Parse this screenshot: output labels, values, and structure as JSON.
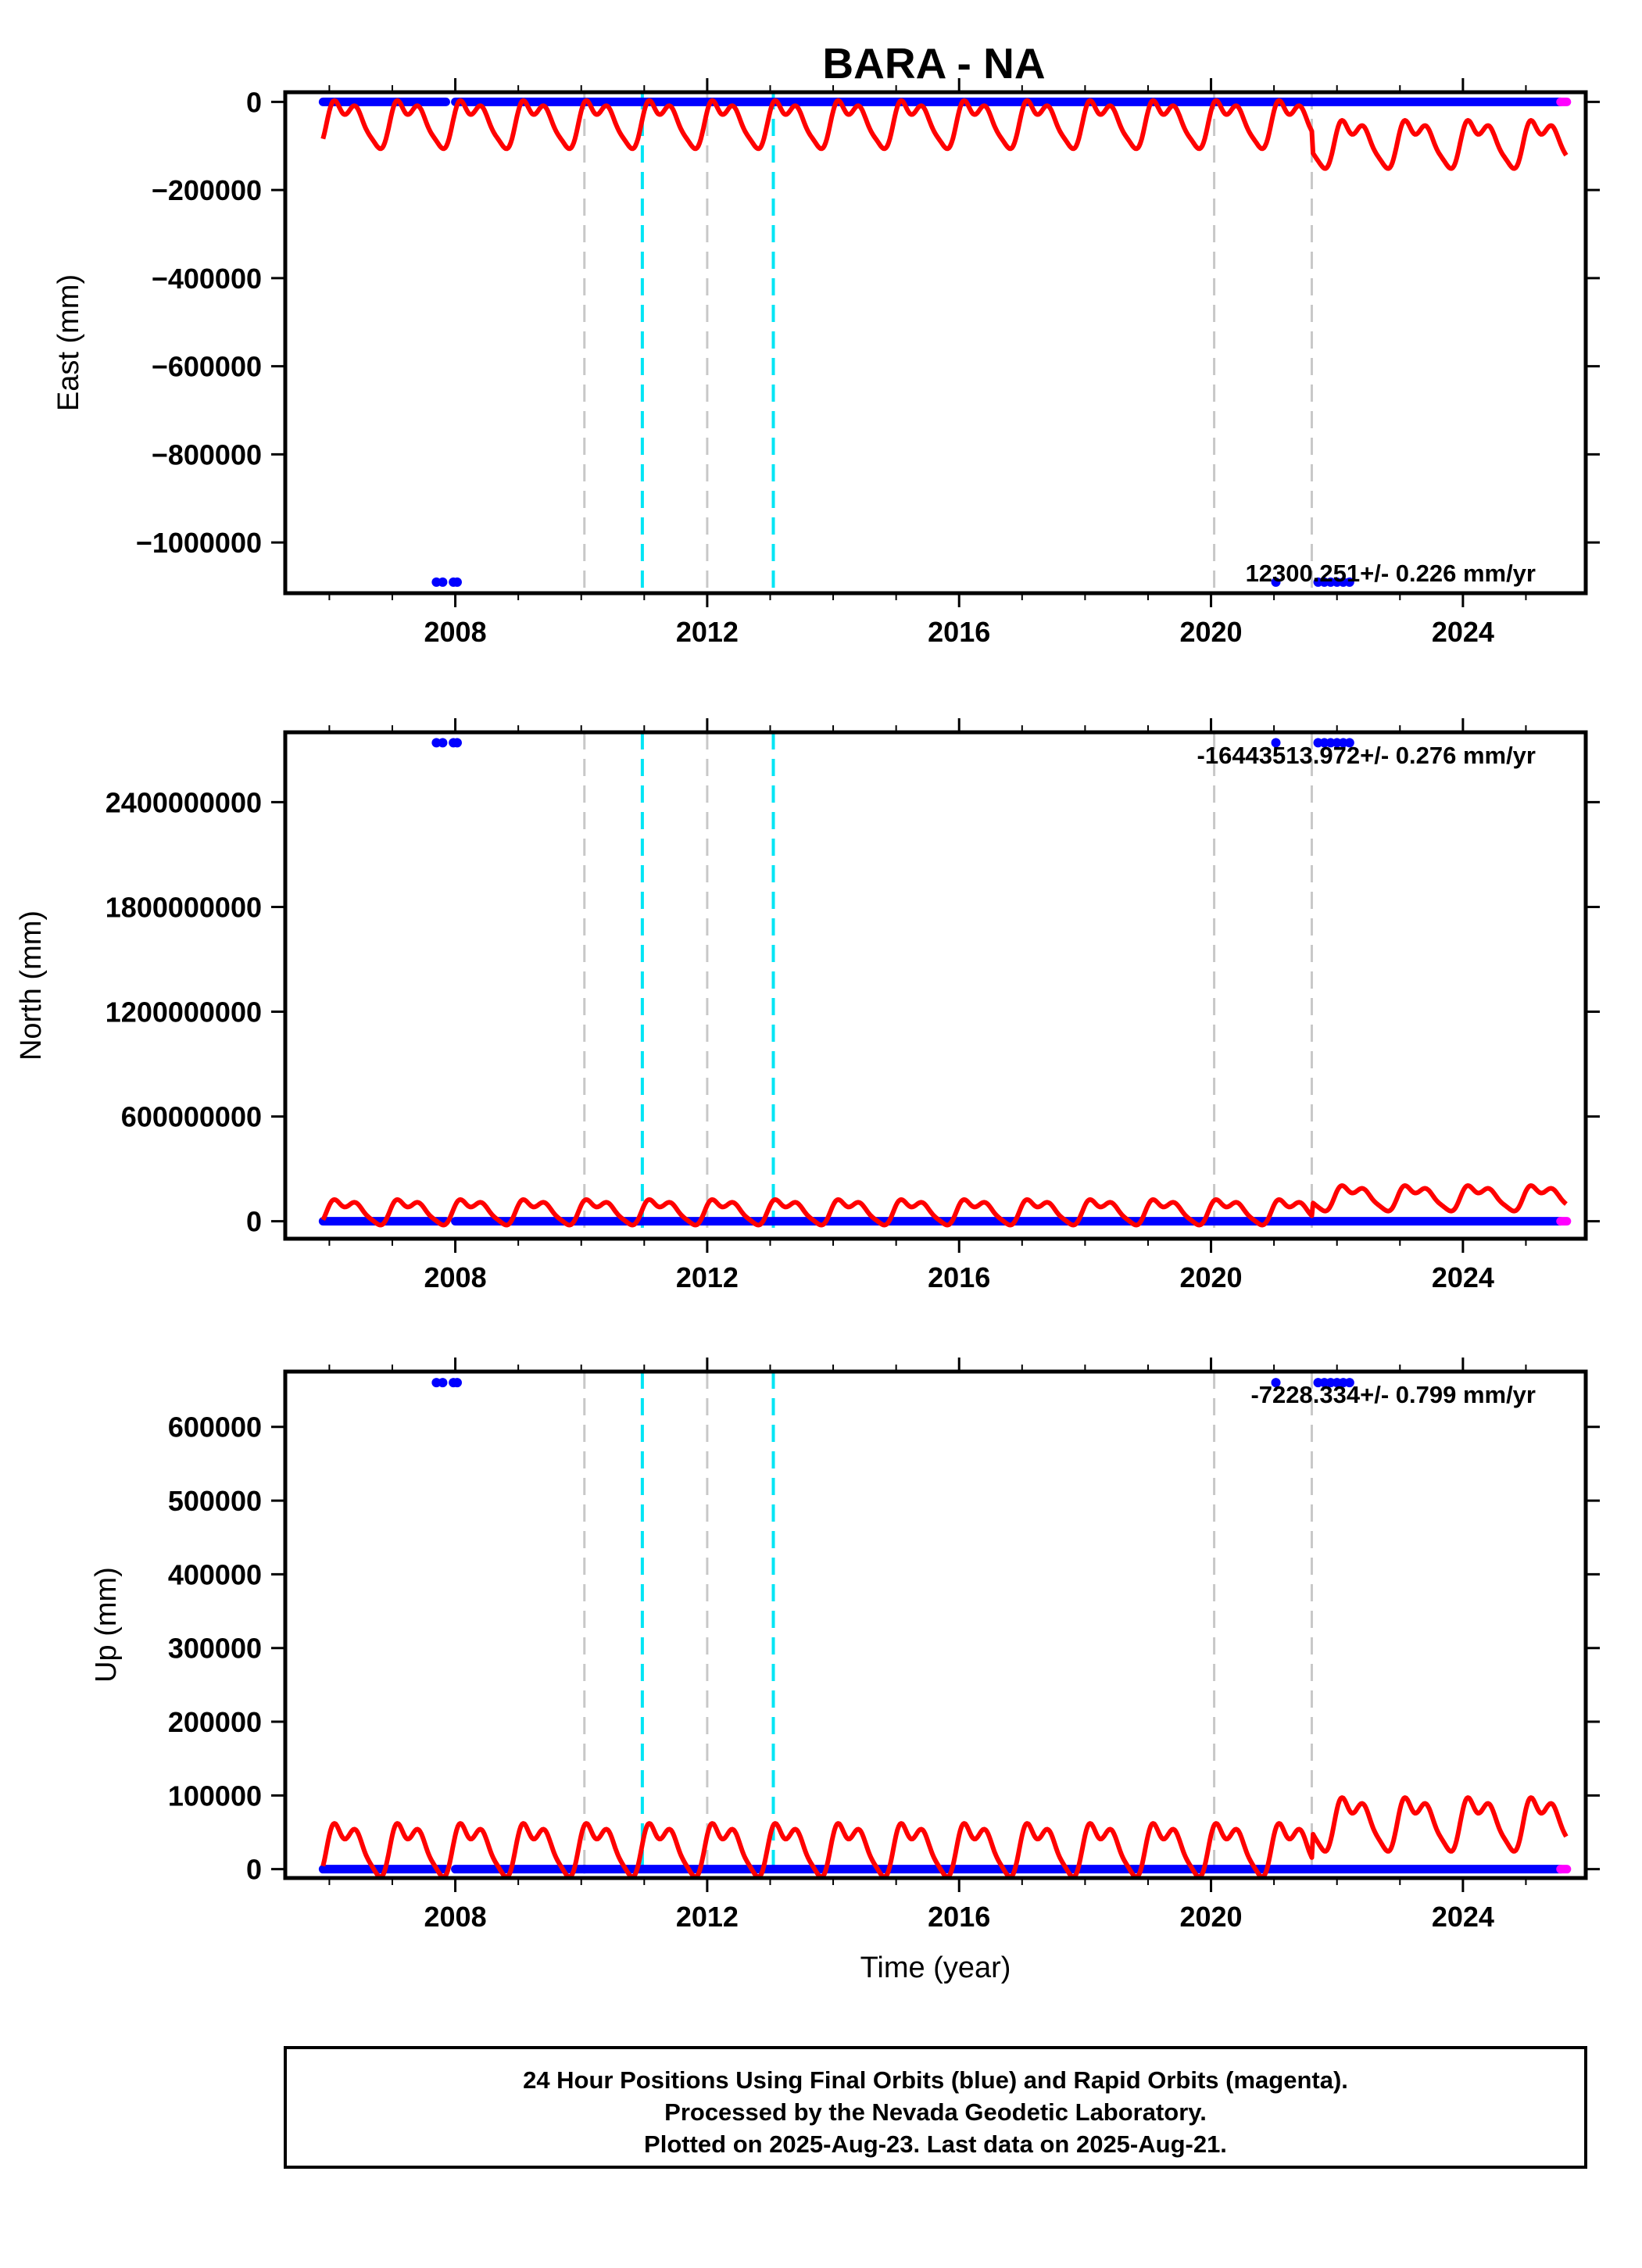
{
  "title": "BARA - NA",
  "footer": {
    "lines": [
      "24 Hour Positions Using Final Orbits (blue) and Rapid Orbits (magenta).",
      "Processed by the Nevada Geodetic Laboratory.",
      "Plotted on 2025-Aug-23. Last data on 2025-Aug-21."
    ]
  },
  "colors": {
    "final_orbits": "#0000ff",
    "rapid_orbits": "#ff00ff",
    "model": "#ff0000",
    "equipment_change": "#c8c8c8",
    "earthquake": "#00e5f5"
  },
  "chart_data": [
    {
      "type": "scatter",
      "panel": "east",
      "ylabel": "East (mm)",
      "xlabel": "",
      "xlim": [
        2005.3,
        2025.95
      ],
      "ylim": [
        -1115000,
        22000
      ],
      "xticks": [
        2008,
        2012,
        2016,
        2020,
        2024
      ],
      "yticks": [
        0,
        -200000,
        -400000,
        -600000,
        -800000,
        -1000000
      ],
      "ytick_labels": [
        "0",
        "−200000",
        "−400000",
        "−600000",
        "−800000",
        "−1000000"
      ],
      "rate": "12300.251+/- 0.226 mm/yr",
      "final_orbit_ranges": [
        [
          2005.9,
          2007.85
        ],
        [
          2008.0,
          2010.05
        ],
        [
          2010.05,
          2025.55
        ]
      ],
      "rapid_orbit_range": [
        2025.55,
        2025.65
      ],
      "baseline_value": 0,
      "outliers": [
        [
          2007.7,
          -1090000
        ],
        [
          2007.8,
          -1090000
        ],
        [
          2007.97,
          -1090000
        ],
        [
          2008.03,
          -1090000
        ],
        [
          2021.03,
          -1090000
        ],
        [
          2021.7,
          -1090000
        ],
        [
          2021.8,
          -1090000
        ],
        [
          2021.9,
          -1090000
        ],
        [
          2022.0,
          -1090000
        ],
        [
          2022.1,
          -1090000
        ],
        [
          2022.2,
          -1090000
        ]
      ],
      "model_offset": -45000,
      "model_amplitude": 45000,
      "model_step": {
        "year": 2021.6,
        "delta": -45000
      },
      "equipment_changes": [
        2010.05,
        2012.0,
        2020.05,
        2021.6
      ],
      "earthquakes": [
        2010.97,
        2013.05
      ],
      "grid": false
    },
    {
      "type": "scatter",
      "panel": "north",
      "ylabel": "North (mm)",
      "xlabel": "",
      "xlim": [
        2005.3,
        2025.95
      ],
      "ylim": [
        -100000000,
        2800000000
      ],
      "xticks": [
        2008,
        2012,
        2016,
        2020,
        2024
      ],
      "yticks": [
        0,
        600000000,
        1200000000,
        1800000000,
        2400000000
      ],
      "ytick_labels": [
        "0",
        "600000000",
        "1200000000",
        "1800000000",
        "2400000000"
      ],
      "rate": "-16443513.972+/- 0.276 mm/yr",
      "final_orbit_ranges": [
        [
          2005.9,
          2007.85
        ],
        [
          2008.0,
          2010.05
        ],
        [
          2010.05,
          2025.55
        ]
      ],
      "rapid_orbit_range": [
        2025.55,
        2025.65
      ],
      "baseline_value": 0,
      "outliers": [
        [
          2007.7,
          2740000000
        ],
        [
          2007.8,
          2740000000
        ],
        [
          2007.97,
          2740000000
        ],
        [
          2008.03,
          2740000000
        ],
        [
          2021.03,
          2740000000
        ],
        [
          2021.7,
          2740000000
        ],
        [
          2021.8,
          2740000000
        ],
        [
          2021.9,
          2740000000
        ],
        [
          2022.0,
          2740000000
        ],
        [
          2022.1,
          2740000000
        ],
        [
          2022.2,
          2740000000
        ]
      ],
      "model_offset": 60000000,
      "model_amplitude": 60000000,
      "model_step": {
        "year": 2021.6,
        "delta": 80000000
      },
      "equipment_changes": [
        2010.05,
        2012.0,
        2020.05,
        2021.6
      ],
      "earthquakes": [
        2010.97,
        2013.05
      ],
      "grid": false
    },
    {
      "type": "scatter",
      "panel": "up",
      "ylabel": "Up (mm)",
      "xlabel": "Time (year)",
      "xlim": [
        2005.3,
        2025.95
      ],
      "ylim": [
        -12000,
        675000
      ],
      "xticks": [
        2008,
        2012,
        2016,
        2020,
        2024
      ],
      "yticks": [
        0,
        100000,
        200000,
        300000,
        400000,
        500000,
        600000
      ],
      "ytick_labels": [
        "0",
        "100000",
        "200000",
        "300000",
        "400000",
        "500000",
        "600000"
      ],
      "rate": "-7228.334+/- 0.799 mm/yr",
      "final_orbit_ranges": [
        [
          2005.9,
          2007.85
        ],
        [
          2008.0,
          2010.05
        ],
        [
          2010.05,
          2025.55
        ]
      ],
      "rapid_orbit_range": [
        2025.55,
        2025.65
      ],
      "baseline_value": 0,
      "outliers": [
        [
          2007.7,
          660000
        ],
        [
          2007.8,
          660000
        ],
        [
          2007.97,
          660000
        ],
        [
          2008.03,
          660000
        ],
        [
          2021.03,
          660000
        ],
        [
          2021.7,
          660000
        ],
        [
          2021.8,
          660000
        ],
        [
          2021.9,
          660000
        ],
        [
          2022.0,
          660000
        ],
        [
          2022.1,
          660000
        ],
        [
          2022.2,
          660000
        ]
      ],
      "model_offset": 30000,
      "model_amplitude": 30000,
      "model_step": {
        "year": 2021.6,
        "delta": 35000
      },
      "equipment_changes": [
        2010.05,
        2012.0,
        2020.05,
        2021.6
      ],
      "earthquakes": [
        2010.97,
        2013.05
      ],
      "grid": false
    }
  ]
}
